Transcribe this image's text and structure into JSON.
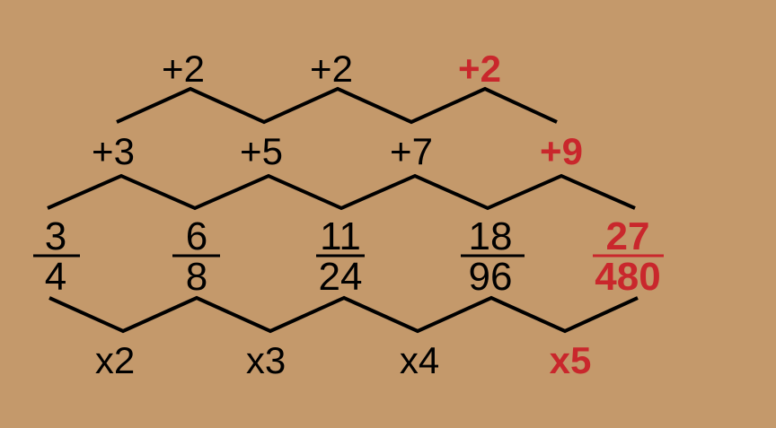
{
  "colors": {
    "background": "#c4996b",
    "ink": "#000000",
    "answer": "#c9272c"
  },
  "top_differences": [
    {
      "label": "+2",
      "is_answer": false
    },
    {
      "label": "+2",
      "is_answer": false
    },
    {
      "label": "+2",
      "is_answer": true
    }
  ],
  "numerator_differences": [
    {
      "label": "+3",
      "is_answer": false
    },
    {
      "label": "+5",
      "is_answer": false
    },
    {
      "label": "+7",
      "is_answer": false
    },
    {
      "label": "+9",
      "is_answer": true
    }
  ],
  "fractions": [
    {
      "numerator": "3",
      "denominator": "4",
      "is_answer": false
    },
    {
      "numerator": "6",
      "denominator": "8",
      "is_answer": false
    },
    {
      "numerator": "11",
      "denominator": "24",
      "is_answer": false
    },
    {
      "numerator": "18",
      "denominator": "96",
      "is_answer": false
    },
    {
      "numerator": "27",
      "denominator": "480",
      "is_answer": true
    }
  ],
  "denominator_multipliers": [
    {
      "label": "x2",
      "is_answer": false
    },
    {
      "label": "x3",
      "is_answer": false
    },
    {
      "label": "x4",
      "is_answer": false
    },
    {
      "label": "x5",
      "is_answer": true
    }
  ]
}
